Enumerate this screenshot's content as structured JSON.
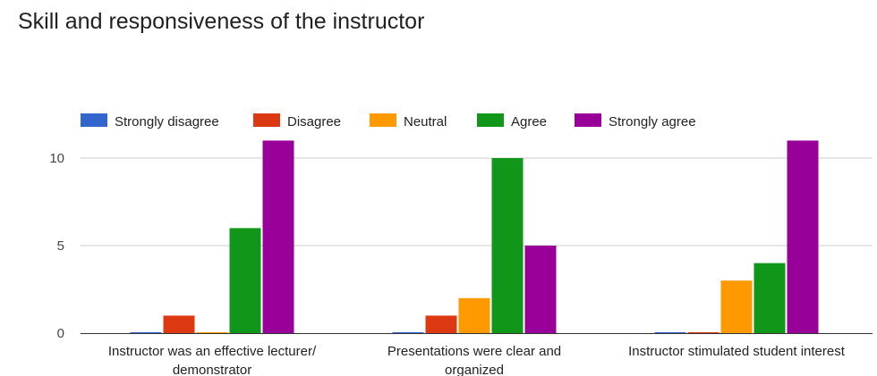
{
  "chart_data": {
    "type": "bar",
    "title": "Skill and responsiveness of the instructor",
    "categories": [
      [
        "Instructor was an effective lecturer/",
        "demonstrator"
      ],
      [
        "Presentations were clear and",
        "organized"
      ],
      [
        "Instructor stimulated student interest"
      ]
    ],
    "series": [
      {
        "name": "Strongly disagree",
        "color": "#3366cc",
        "values": [
          0,
          0,
          0
        ]
      },
      {
        "name": "Disagree",
        "color": "#dc3912",
        "values": [
          1,
          1,
          0
        ]
      },
      {
        "name": "Neutral",
        "color": "#ff9900",
        "values": [
          0,
          2,
          3
        ]
      },
      {
        "name": "Agree",
        "color": "#109618",
        "values": [
          6,
          10,
          4
        ]
      },
      {
        "name": "Strongly agree",
        "color": "#990099",
        "values": [
          11,
          5,
          11
        ]
      }
    ],
    "yticks": [
      0,
      5,
      10
    ],
    "ylim": [
      0,
      11
    ],
    "grid": true,
    "legend_position": "top"
  }
}
